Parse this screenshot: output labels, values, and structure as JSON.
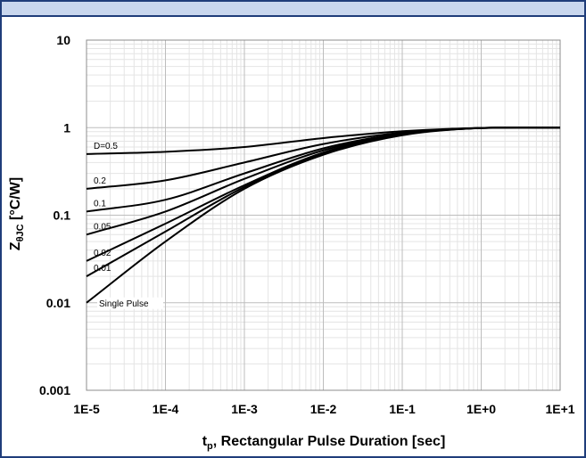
{
  "chart_data": {
    "type": "line",
    "x_scale": "log",
    "y_scale": "log",
    "xlim": [
      1e-05,
      10
    ],
    "ylim": [
      0.001,
      10
    ],
    "x_tick_labels": [
      "1E-5",
      "1E-4",
      "1E-3",
      "1E-2",
      "1E-1",
      "1E+0",
      "1E+1"
    ],
    "x_tick_values": [
      1e-05,
      0.0001,
      0.001,
      0.01,
      0.1,
      1,
      10
    ],
    "y_tick_labels": [
      "0.001",
      "0.01",
      "0.1",
      "1",
      "10"
    ],
    "y_tick_values": [
      0.001,
      0.01,
      0.1,
      1,
      10
    ],
    "xlabel_main": "t",
    "xlabel_sub": "p",
    "xlabel_rest": ", Rectangular Pulse Duration [sec]",
    "ylabel_main": "Z",
    "ylabel_sub": "θJC",
    "ylabel_rest": " [°C/W]",
    "grid": true,
    "series": [
      {
        "name": "D=0.5",
        "x": [
          1e-05,
          0.0001,
          0.001,
          0.01,
          0.1,
          1,
          10
        ],
        "values": [
          0.5,
          0.53,
          0.6,
          0.76,
          0.91,
          0.99,
          1.0
        ]
      },
      {
        "name": "0.2",
        "x": [
          1e-05,
          0.0001,
          0.001,
          0.01,
          0.1,
          1,
          10
        ],
        "values": [
          0.2,
          0.25,
          0.4,
          0.65,
          0.88,
          0.99,
          1.0
        ]
      },
      {
        "name": "0.1",
        "x": [
          1e-05,
          0.0001,
          0.001,
          0.01,
          0.1,
          1,
          10
        ],
        "values": [
          0.11,
          0.15,
          0.3,
          0.58,
          0.86,
          0.99,
          1.0
        ]
      },
      {
        "name": "0.05",
        "x": [
          1e-05,
          0.0001,
          0.001,
          0.01,
          0.1,
          1,
          10
        ],
        "values": [
          0.06,
          0.11,
          0.26,
          0.55,
          0.85,
          0.99,
          1.0
        ]
      },
      {
        "name": "0.02",
        "x": [
          1e-05,
          0.0001,
          0.001,
          0.01,
          0.1,
          1,
          10
        ],
        "values": [
          0.03,
          0.08,
          0.22,
          0.52,
          0.84,
          0.99,
          1.0
        ]
      },
      {
        "name": "0.01",
        "x": [
          1e-05,
          0.0001,
          0.001,
          0.01,
          0.1,
          1,
          10
        ],
        "values": [
          0.02,
          0.065,
          0.21,
          0.5,
          0.83,
          0.99,
          1.0
        ]
      },
      {
        "name": "Single Pulse",
        "x": [
          1e-05,
          0.0001,
          0.001,
          0.01,
          0.1,
          1,
          10
        ],
        "values": [
          0.01,
          0.05,
          0.2,
          0.49,
          0.82,
          0.99,
          1.0
        ]
      }
    ]
  }
}
